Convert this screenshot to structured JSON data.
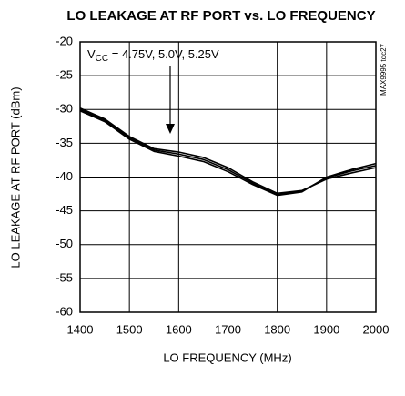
{
  "chart_data": {
    "type": "line",
    "title": "LO LEAKAGE AT RF PORT vs. LO FREQUENCY",
    "x_label": "LO FREQUENCY (MHz)",
    "y_label": "LO LEAKAGE AT RF PORT (dBm)",
    "annotation": {
      "prefix": "V",
      "subscript": "CC",
      "text": " = 4.75V, 5.0V, 5.25V"
    },
    "watermark": "MAX9995 toc27",
    "x": [
      1400,
      1450,
      1500,
      1550,
      1600,
      1650,
      1700,
      1750,
      1800,
      1850,
      1900,
      1950,
      2000
    ],
    "series": [
      {
        "color": "#000000",
        "values": [
          -29.8,
          -31.4,
          -34.0,
          -35.8,
          -36.3,
          -37.1,
          -38.6,
          -40.7,
          -42.4,
          -42.0,
          -40.3,
          -39.4,
          -38.6
        ]
      },
      {
        "color": "#000000",
        "values": [
          -30.0,
          -31.6,
          -34.2,
          -36.0,
          -36.6,
          -37.4,
          -38.9,
          -40.9,
          -42.6,
          -42.1,
          -40.1,
          -39.1,
          -38.3
        ]
      },
      {
        "color": "#000000",
        "values": [
          -30.2,
          -31.8,
          -34.4,
          -36.2,
          -36.9,
          -37.7,
          -39.2,
          -41.1,
          -42.7,
          -42.2,
          -40.0,
          -38.9,
          -38.0
        ]
      }
    ],
    "xlim": [
      1400,
      2000
    ],
    "xticks": [
      1400,
      1500,
      1600,
      1700,
      1800,
      1900,
      2000
    ],
    "ylim": [
      -60,
      -20
    ],
    "yticks": [
      -60,
      -55,
      -50,
      -45,
      -40,
      -35,
      -30,
      -25,
      -20
    ],
    "grid": true
  }
}
